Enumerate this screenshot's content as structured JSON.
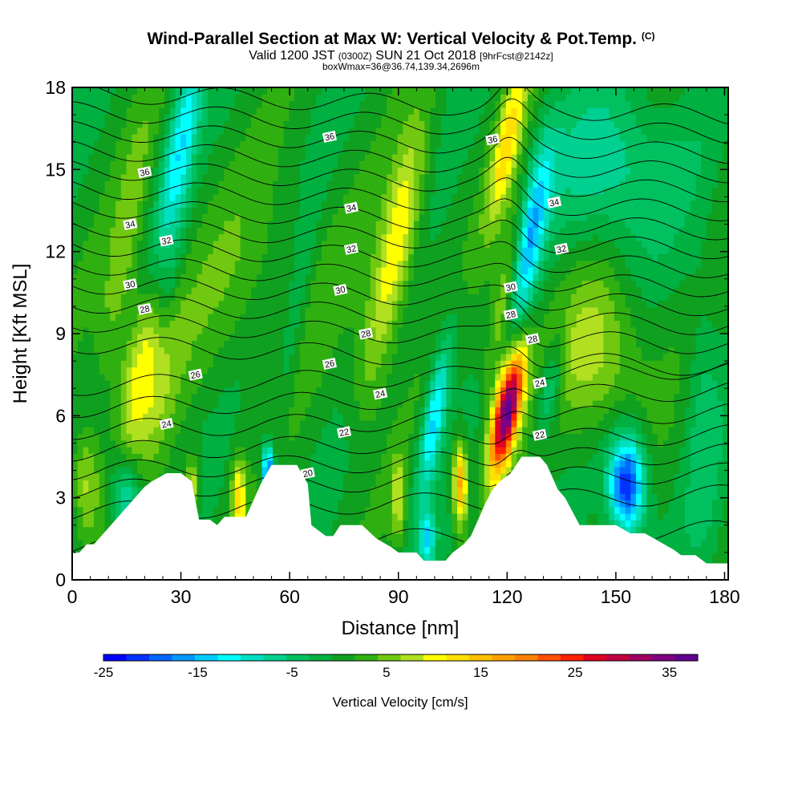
{
  "header": {
    "title": "Wind-Parallel Section at Max W: Vertical Velocity & Pot.Temp.",
    "title_mark": "(C)",
    "valid_prefix": "Valid 1200 JST",
    "valid_utc": "(0300Z)",
    "valid_date": "SUN 21 Oct 2018",
    "forecast": "[9hrFcst@2142z]",
    "box_info": "boxWmax=36@36.74,139.34,2696m"
  },
  "chart_data": {
    "type": "heatmap",
    "xlabel": "Distance [nm]",
    "ylabel": "Height [Kft MSL]",
    "xlim": [
      0,
      181
    ],
    "ylim": [
      0,
      18
    ],
    "x_ticks": [
      "0",
      "30",
      "60",
      "90",
      "120",
      "150",
      "180"
    ],
    "y_ticks": [
      "0",
      "3",
      "6",
      "9",
      "12",
      "15",
      "18"
    ],
    "colorbar": {
      "title": "Vertical Velocity [cm/s]",
      "tick_labels": [
        "-25",
        "-15",
        "-5",
        "5",
        "15",
        "25",
        "35"
      ],
      "range": [
        -25,
        38
      ],
      "colors": [
        "#0000ff",
        "#0033ff",
        "#0066ff",
        "#0099ff",
        "#00ccff",
        "#00ffff",
        "#00e0c0",
        "#00d090",
        "#00c060",
        "#00b040",
        "#10a020",
        "#30b010",
        "#70c810",
        "#b0e020",
        "#ffff00",
        "#ffe000",
        "#ffc000",
        "#ffa000",
        "#ff8000",
        "#ff5000",
        "#ff2000",
        "#e00020",
        "#c00040",
        "#a00060",
        "#800080",
        "#600090"
      ]
    },
    "terrain_kft": [
      [
        0,
        1.0
      ],
      [
        2,
        1.0
      ],
      [
        4,
        1.3
      ],
      [
        6,
        1.3
      ],
      [
        8,
        1.6
      ],
      [
        10,
        1.9
      ],
      [
        12,
        2.2
      ],
      [
        14,
        2.5
      ],
      [
        16,
        2.8
      ],
      [
        18,
        3.1
      ],
      [
        20,
        3.4
      ],
      [
        22,
        3.6
      ],
      [
        26,
        3.9
      ],
      [
        30,
        3.9
      ],
      [
        33,
        3.6
      ],
      [
        35,
        2.2
      ],
      [
        38,
        2.2
      ],
      [
        40,
        2.0
      ],
      [
        42,
        2.3
      ],
      [
        48,
        2.3
      ],
      [
        52,
        3.5
      ],
      [
        55,
        4.2
      ],
      [
        60,
        4.2
      ],
      [
        62,
        4.2
      ],
      [
        65,
        3.5
      ],
      [
        66,
        2.0
      ],
      [
        68,
        1.8
      ],
      [
        70,
        1.6
      ],
      [
        72,
        1.6
      ],
      [
        74,
        2.0
      ],
      [
        80,
        2.0
      ],
      [
        84,
        1.5
      ],
      [
        88,
        1.2
      ],
      [
        90,
        1.0
      ],
      [
        95,
        1.0
      ],
      [
        97,
        0.7
      ],
      [
        103,
        0.7
      ],
      [
        105,
        1.0
      ],
      [
        108,
        1.3
      ],
      [
        110,
        1.6
      ],
      [
        112,
        2.2
      ],
      [
        114,
        2.8
      ],
      [
        116,
        3.3
      ],
      [
        118,
        3.6
      ],
      [
        121,
        3.9
      ],
      [
        124,
        4.5
      ],
      [
        129,
        4.5
      ],
      [
        131,
        4.2
      ],
      [
        134,
        3.3
      ],
      [
        136,
        3.0
      ],
      [
        138,
        2.5
      ],
      [
        140,
        2.0
      ],
      [
        150,
        2.0
      ],
      [
        154,
        1.7
      ],
      [
        158,
        1.7
      ],
      [
        162,
        1.4
      ],
      [
        166,
        1.1
      ],
      [
        168,
        0.9
      ],
      [
        172,
        0.9
      ],
      [
        175,
        0.6
      ],
      [
        179,
        0.6
      ],
      [
        181,
        0.6
      ]
    ],
    "w_features": [
      {
        "x": 48,
        "z": 11,
        "wx": 26,
        "wz": 4.0,
        "tilt": 0.9,
        "w": 3
      },
      {
        "x": 20,
        "z": 7.5,
        "wx": 7,
        "wz": 3.0,
        "tilt": 1.0,
        "w": 12
      },
      {
        "x": 14,
        "z": 12,
        "wx": 4,
        "wz": 5.0,
        "tilt": 1.2,
        "w": 5
      },
      {
        "x": 30,
        "z": 16,
        "wx": 4,
        "wz": 4.0,
        "tilt": 1.3,
        "w": -12
      },
      {
        "x": 26,
        "z": 10,
        "wx": 3,
        "wz": 4.0,
        "tilt": 1.2,
        "w": -4
      },
      {
        "x": 4,
        "z": 3.5,
        "wx": 4,
        "wz": 2.0,
        "tilt": 0.0,
        "w": 8
      },
      {
        "x": 15,
        "z": 3.0,
        "wx": 4,
        "wz": 1.5,
        "tilt": 0.0,
        "w": -10
      },
      {
        "x": 33,
        "z": 3.5,
        "wx": 2,
        "wz": 1.0,
        "tilt": 0.0,
        "w": 10
      },
      {
        "x": 46,
        "z": 3.0,
        "wx": 2,
        "wz": 1.5,
        "tilt": 0.0,
        "w": 12
      },
      {
        "x": 54,
        "z": 3.9,
        "wx": 1.5,
        "wz": 1.0,
        "tilt": 0.0,
        "w": -22
      },
      {
        "x": 62,
        "z": 10,
        "wx": 3,
        "wz": 5.0,
        "tilt": 1.2,
        "w": -4
      },
      {
        "x": 90,
        "z": 12.5,
        "wx": 5,
        "wz": 4.0,
        "tilt": 1.3,
        "w": 12
      },
      {
        "x": 82,
        "z": 8,
        "wx": 5,
        "wz": 3.0,
        "tilt": 1.0,
        "w": 4
      },
      {
        "x": 100,
        "z": 6,
        "wx": 3,
        "wz": 3.0,
        "tilt": 1.2,
        "w": -14
      },
      {
        "x": 98,
        "z": 1.5,
        "wx": 2,
        "wz": 1.0,
        "tilt": 0.0,
        "w": -12
      },
      {
        "x": 90,
        "z": 3.0,
        "wx": 2,
        "wz": 1.5,
        "tilt": 0.0,
        "w": 8
      },
      {
        "x": 107,
        "z": 3.5,
        "wx": 2,
        "wz": 1.5,
        "tilt": 0.0,
        "w": 18
      },
      {
        "x": 120,
        "z": 6.2,
        "wx": 3.5,
        "wz": 2.2,
        "tilt": 1.4,
        "w": 38
      },
      {
        "x": 120,
        "z": 10.5,
        "wx": 3.5,
        "wz": 3.5,
        "tilt": 1.3,
        "w": 10
      },
      {
        "x": 120,
        "z": 16,
        "wx": 3.5,
        "wz": 3.0,
        "tilt": 1.4,
        "w": 12
      },
      {
        "x": 126,
        "z": 12.5,
        "wx": 4,
        "wz": 3.5,
        "tilt": 1.3,
        "w": -16
      },
      {
        "x": 132,
        "z": 7.0,
        "wx": 3,
        "wz": 2.0,
        "tilt": 1.2,
        "w": -8
      },
      {
        "x": 145,
        "z": 8.2,
        "wx": 12,
        "wz": 3.0,
        "tilt": 0.2,
        "w": 8
      },
      {
        "x": 150,
        "z": 15,
        "wx": 16,
        "wz": 3.0,
        "tilt": 0.0,
        "w": -8
      },
      {
        "x": 153,
        "z": 3.5,
        "wx": 5,
        "wz": 1.8,
        "tilt": 0.0,
        "w": -24
      },
      {
        "x": 174,
        "z": 6.0,
        "wx": 5,
        "wz": 6.0,
        "tilt": 0.0,
        "w": -4
      }
    ],
    "theta_contour_labels": [
      {
        "x": 20,
        "z": 14.9,
        "label": "36"
      },
      {
        "x": 71,
        "z": 16.2,
        "label": "36"
      },
      {
        "x": 116,
        "z": 16.1,
        "label": "36"
      },
      {
        "x": 16,
        "z": 13.0,
        "label": "34"
      },
      {
        "x": 77,
        "z": 13.6,
        "label": "34"
      },
      {
        "x": 133,
        "z": 13.8,
        "label": "34"
      },
      {
        "x": 26,
        "z": 12.4,
        "label": "32"
      },
      {
        "x": 77,
        "z": 12.1,
        "label": "32"
      },
      {
        "x": 135,
        "z": 12.1,
        "label": "32"
      },
      {
        "x": 16,
        "z": 10.8,
        "label": "30"
      },
      {
        "x": 74,
        "z": 10.6,
        "label": "30"
      },
      {
        "x": 121,
        "z": 10.7,
        "label": "30"
      },
      {
        "x": 20,
        "z": 9.9,
        "label": "28"
      },
      {
        "x": 81,
        "z": 9.0,
        "label": "28"
      },
      {
        "x": 121,
        "z": 9.7,
        "label": "28"
      },
      {
        "x": 127,
        "z": 8.8,
        "label": "28"
      },
      {
        "x": 34,
        "z": 7.5,
        "label": "26"
      },
      {
        "x": 71,
        "z": 7.9,
        "label": "26"
      },
      {
        "x": 85,
        "z": 6.8,
        "label": "24"
      },
      {
        "x": 129,
        "z": 7.2,
        "label": "24"
      },
      {
        "x": 26,
        "z": 5.7,
        "label": "24"
      },
      {
        "x": 75,
        "z": 5.4,
        "label": "22"
      },
      {
        "x": 129,
        "z": 5.3,
        "label": "22"
      },
      {
        "x": 65,
        "z": 3.9,
        "label": "20"
      }
    ]
  }
}
